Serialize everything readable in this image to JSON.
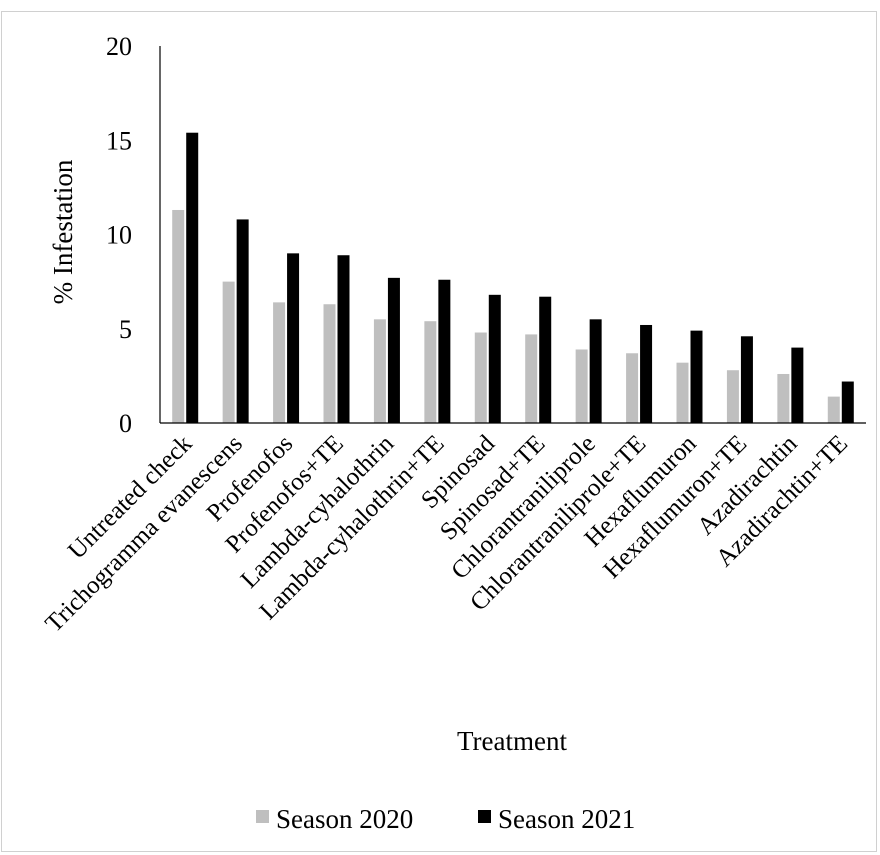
{
  "chart_data": {
    "type": "bar",
    "title": "",
    "xlabel": "Treatment",
    "ylabel": "% Infestation",
    "ylim": [
      0,
      20
    ],
    "yticks": [
      0,
      5,
      10,
      15,
      20
    ],
    "grid": false,
    "legend_position": "bottom",
    "categories": [
      "Untreated check",
      "Trichogramma evanescens",
      "Profenofos",
      "Profenofos+TE",
      "Lambda-cyhalothrin",
      "Lambda-cyhalothrin+TE",
      "Spinosad",
      "Spinosad+TE",
      "Chlorantraniliprole",
      "Chlorantraniliprole+TE",
      "Hexaflumuron",
      "Hexaflumuron+TE",
      "Azadirachtin",
      "Azadirachtin+TE"
    ],
    "series": [
      {
        "name": "Season 2020",
        "color": "#bfbfbf",
        "values": [
          11.3,
          7.5,
          6.4,
          6.3,
          5.5,
          5.4,
          4.8,
          4.7,
          3.9,
          3.7,
          3.2,
          2.8,
          2.6,
          1.4
        ]
      },
      {
        "name": "Season 2021",
        "color": "#000000",
        "values": [
          15.4,
          10.8,
          9.0,
          8.9,
          7.7,
          7.6,
          6.8,
          6.7,
          5.5,
          5.2,
          4.9,
          4.6,
          4.0,
          2.2
        ]
      }
    ]
  }
}
